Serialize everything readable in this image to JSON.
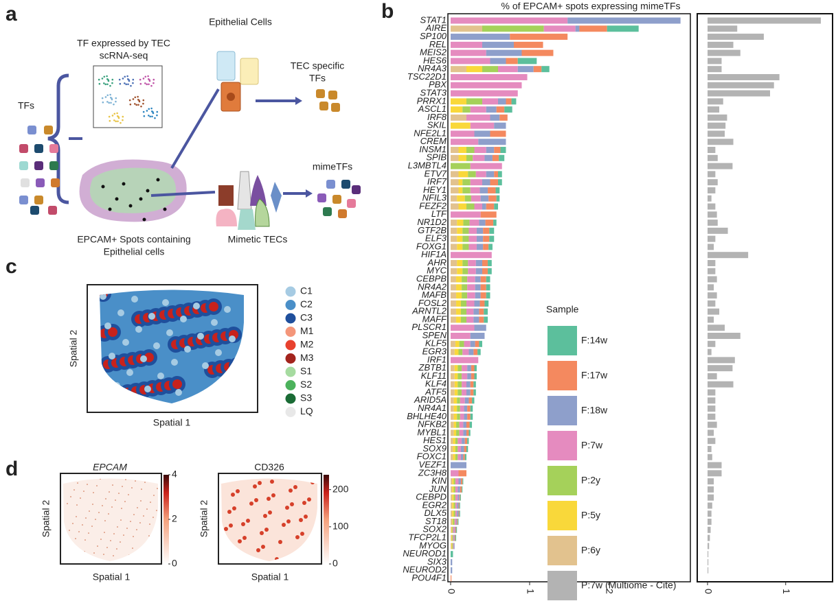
{
  "chart_data": [
    {
      "type": "stacked-bar",
      "orientation": "horizontal",
      "title": "% of EPCAM+ spots expressing mimeTFs",
      "legend_title": "Sample",
      "categories": [
        "STAT1",
        "AIRE",
        "SP100",
        "REL",
        "MEIS2",
        "HES6",
        "NR4A3",
        "TSC22D1",
        "PBX",
        "STAT3",
        "PRRX1",
        "ASCL1",
        "IRF8",
        "SKIL",
        "NFE2L1",
        "CREM",
        "INSM1",
        "SPIB",
        "L3MBTL4",
        "ETV7",
        "IRF7",
        "HEY1",
        "NFIL3",
        "FEZF2",
        "LTF",
        "NR1D2",
        "GTF2B",
        "ELF3",
        "FOXG1",
        "HIF1A",
        "AHR",
        "MYC",
        "CEBPB",
        "NR4A2",
        "MAFB",
        "FOSL2",
        "ARNTL2",
        "MAFF",
        "PLSCR1",
        "SPEN",
        "KLF5",
        "EGR3",
        "IRF1",
        "ZBTB1",
        "KLF11",
        "KLF4",
        "ATF5",
        "ARID5A",
        "NR4A1",
        "BHLHE40",
        "NFKB2",
        "MYBL1",
        "HES1",
        "SOX9",
        "FOXC1",
        "VEZF1",
        "ZC3H8",
        "KIN",
        "JUN",
        "CEBPD",
        "EGR2",
        "DLX5",
        "ST18",
        "SOX2",
        "TFCP2L1",
        "MYOG",
        "NEUROD1",
        "SIX3",
        "NEUROD2",
        "POU4F1"
      ],
      "label_colors": [
        "#555555",
        "#e03c31",
        "#555555",
        "#555555",
        "#555555",
        "#555555",
        "#555555",
        "#555555",
        "#555555",
        "#555555",
        "#555555",
        "#e03c31",
        "#555555",
        "#555555",
        "#555555",
        "#555555",
        "#e03c31",
        "#e03c31",
        "#555555",
        "#555555",
        "#555555",
        "#555555",
        "#555555",
        "#e03c31",
        "#555555",
        "#555555",
        "#555555",
        "#555555",
        "#555555",
        "#555555",
        "#555555",
        "#555555",
        "#555555",
        "#555555",
        "#555555",
        "#555555",
        "#555555",
        "#555555",
        "#555555",
        "#555555",
        "#555555",
        "#29a8d8",
        "#555555",
        "#555555",
        "#555555",
        "#555555",
        "#555555",
        "#555555",
        "#555555",
        "#29a8d8",
        "#29a8d8",
        "#555555",
        "#555555",
        "#e03c31",
        "#555555",
        "#555555",
        "#555555",
        "#555555",
        "#e03c31",
        "#555555",
        "#555555",
        "#29a8d8",
        "#555555",
        "#e03c31",
        "#555555",
        "#e03c31",
        "#e03c31",
        "#555555",
        "#555555",
        "#e03c31"
      ],
      "series": [
        {
          "name": "F:14w",
          "color": "#5cbf9c"
        },
        {
          "name": "F:17w",
          "color": "#f4895f"
        },
        {
          "name": "F:18w",
          "color": "#8e9fcb"
        },
        {
          "name": "P:7w",
          "color": "#e58bbf"
        },
        {
          "name": "P:2y",
          "color": "#a5d15a"
        },
        {
          "name": "P:5y",
          "color": "#f9d83a"
        },
        {
          "name": "P:6y",
          "color": "#e2c28e"
        }
      ],
      "values": [
        [
          0,
          0,
          1.43,
          1.48,
          0,
          0,
          0
        ],
        [
          0.4,
          0.35,
          0.05,
          0.4,
          0.78,
          0,
          0.4
        ],
        [
          0,
          0.73,
          0.75,
          0,
          0,
          0,
          0
        ],
        [
          0,
          0.37,
          0.4,
          0.4,
          0,
          0,
          0
        ],
        [
          0,
          0.4,
          0.45,
          0.45,
          0,
          0,
          0
        ],
        [
          0.24,
          0.15,
          0.2,
          0.5,
          0,
          0,
          0
        ],
        [
          0.1,
          0.1,
          0.2,
          0.25,
          0.2,
          0.2,
          0.2
        ],
        [
          0,
          0,
          0,
          0.97,
          0,
          0,
          0
        ],
        [
          0,
          0,
          0,
          0.9,
          0,
          0,
          0
        ],
        [
          0,
          0,
          0,
          0.85,
          0,
          0,
          0
        ],
        [
          0.06,
          0.07,
          0.1,
          0.2,
          0.2,
          0.2,
          0
        ],
        [
          0.1,
          0.1,
          0.13,
          0.2,
          0.1,
          0.15,
          0
        ],
        [
          0,
          0.1,
          0.12,
          0.3,
          0,
          0,
          0.2
        ],
        [
          0,
          0,
          0.15,
          0.3,
          0,
          0.25,
          0
        ],
        [
          0,
          0.2,
          0.2,
          0.3,
          0,
          0,
          0
        ],
        [
          0,
          0,
          0.35,
          0.35,
          0,
          0,
          0
        ],
        [
          0.07,
          0.08,
          0.1,
          0.15,
          0.1,
          0.1,
          0.1
        ],
        [
          0.07,
          0.08,
          0.1,
          0.15,
          0.08,
          0.1,
          0.1
        ],
        [
          0,
          0,
          0,
          0.4,
          0.25,
          0,
          0
        ],
        [
          0.05,
          0.05,
          0.1,
          0.13,
          0.1,
          0.12,
          0.1
        ],
        [
          0.05,
          0.1,
          0.1,
          0.15,
          0.1,
          0.05,
          0.1
        ],
        [
          0.05,
          0.1,
          0.1,
          0.12,
          0.1,
          0.05,
          0.1
        ],
        [
          0.04,
          0.1,
          0.1,
          0.12,
          0.08,
          0.1,
          0.08
        ],
        [
          0.05,
          0.1,
          0.05,
          0.1,
          0.1,
          0.1,
          0.1
        ],
        [
          0,
          0.2,
          0,
          0.38,
          0,
          0,
          0
        ],
        [
          0.04,
          0.1,
          0.08,
          0.12,
          0.08,
          0.08,
          0.08
        ],
        [
          0.06,
          0.08,
          0.08,
          0.1,
          0.08,
          0.07,
          0.08
        ],
        [
          0.06,
          0.08,
          0.08,
          0.1,
          0.08,
          0.07,
          0.08
        ],
        [
          0.05,
          0.07,
          0.08,
          0.1,
          0.08,
          0.07,
          0.08
        ],
        [
          0,
          0,
          0,
          0.52,
          0,
          0,
          0
        ],
        [
          0.05,
          0.07,
          0.08,
          0.1,
          0.07,
          0.07,
          0.08
        ],
        [
          0.05,
          0.07,
          0.08,
          0.1,
          0.07,
          0.07,
          0.08
        ],
        [
          0.05,
          0.07,
          0.07,
          0.1,
          0.07,
          0.07,
          0.07
        ],
        [
          0.05,
          0.07,
          0.07,
          0.1,
          0.07,
          0.07,
          0.07
        ],
        [
          0.05,
          0.07,
          0.07,
          0.1,
          0.07,
          0.07,
          0.07
        ],
        [
          0.05,
          0.06,
          0.07,
          0.1,
          0.07,
          0.06,
          0.07
        ],
        [
          0.05,
          0.06,
          0.07,
          0.09,
          0.07,
          0.06,
          0.07
        ],
        [
          0.05,
          0.06,
          0.07,
          0.09,
          0.07,
          0.06,
          0.07
        ],
        [
          0,
          0,
          0.15,
          0.3,
          0,
          0,
          0
        ],
        [
          0,
          0,
          0.18,
          0.25,
          0,
          0,
          0
        ],
        [
          0.04,
          0.05,
          0.06,
          0.08,
          0.06,
          0.05,
          0.06
        ],
        [
          0.04,
          0.05,
          0.06,
          0.08,
          0.05,
          0.05,
          0.05
        ],
        [
          0,
          0,
          0,
          0.35,
          0,
          0,
          0
        ],
        [
          0.03,
          0.04,
          0.05,
          0.07,
          0.05,
          0.04,
          0.05
        ],
        [
          0.03,
          0.04,
          0.05,
          0.07,
          0.05,
          0.04,
          0.05
        ],
        [
          0.03,
          0.04,
          0.05,
          0.06,
          0.05,
          0.04,
          0.05
        ],
        [
          0.03,
          0.04,
          0.05,
          0.06,
          0.05,
          0.04,
          0.05
        ],
        [
          0.03,
          0.04,
          0.05,
          0.06,
          0.04,
          0.04,
          0.04
        ],
        [
          0.03,
          0.04,
          0.04,
          0.05,
          0.04,
          0.04,
          0.04
        ],
        [
          0.03,
          0.04,
          0.04,
          0.05,
          0.04,
          0.04,
          0.04
        ],
        [
          0.03,
          0.04,
          0.04,
          0.05,
          0.04,
          0.03,
          0.04
        ],
        [
          0.02,
          0.03,
          0.04,
          0.05,
          0.04,
          0.03,
          0.04
        ],
        [
          0.02,
          0.03,
          0.04,
          0.05,
          0.03,
          0.03,
          0.03
        ],
        [
          0.02,
          0.03,
          0.04,
          0.04,
          0.03,
          0.03,
          0.03
        ],
        [
          0.02,
          0.02,
          0.03,
          0.04,
          0.03,
          0.03,
          0.03
        ],
        [
          0,
          0,
          0.2,
          0,
          0,
          0,
          0
        ],
        [
          0,
          0.1,
          0,
          0.1,
          0,
          0,
          0
        ],
        [
          0.01,
          0.02,
          0.03,
          0.04,
          0.02,
          0.02,
          0.02
        ],
        [
          0.01,
          0.02,
          0.03,
          0.03,
          0.02,
          0.02,
          0.02
        ],
        [
          0.01,
          0.01,
          0.02,
          0.03,
          0.02,
          0.02,
          0.02
        ],
        [
          0.01,
          0.01,
          0.02,
          0.02,
          0.02,
          0.02,
          0.02
        ],
        [
          0.01,
          0.01,
          0.02,
          0.02,
          0.02,
          0.02,
          0.02
        ],
        [
          0.01,
          0.01,
          0.01,
          0.02,
          0.02,
          0.01,
          0.02
        ],
        [
          0.01,
          0.01,
          0.01,
          0.02,
          0.01,
          0.01,
          0.01
        ],
        [
          0.01,
          0.01,
          0.01,
          0.01,
          0.01,
          0.01,
          0.01
        ],
        [
          0,
          0,
          0.01,
          0.01,
          0.01,
          0.01,
          0.01
        ],
        [
          0.03,
          0,
          0,
          0,
          0,
          0,
          0
        ],
        [
          0,
          0,
          0.02,
          0,
          0,
          0,
          0
        ],
        [
          0,
          0,
          0.02,
          0,
          0,
          0,
          0
        ],
        [
          0,
          0.01,
          0,
          0,
          0,
          0,
          0
        ]
      ],
      "xlim": [
        0,
        3
      ],
      "xticks": [
        0,
        1,
        2
      ]
    },
    {
      "type": "bar",
      "orientation": "horizontal",
      "series": [
        {
          "name": "P:7w (Multiome - Cite)",
          "color": "#b3b3b3",
          "values": [
            1.45,
            0.38,
            0.72,
            0.33,
            0.42,
            0.18,
            0.18,
            0.92,
            0.85,
            0.8,
            0.2,
            0.15,
            0.25,
            0.23,
            0.22,
            0.33,
            0.1,
            0.13,
            0.32,
            0.1,
            0.13,
            0.1,
            0.05,
            0.1,
            0.12,
            0.13,
            0.26,
            0.1,
            0.08,
            0.52,
            0.1,
            0.1,
            0.12,
            0.08,
            0.12,
            0.1,
            0.15,
            0.08,
            0.22,
            0.42,
            0.1,
            0.05,
            0.35,
            0.32,
            0.12,
            0.33,
            0.1,
            0.1,
            0.1,
            0.1,
            0.12,
            0.08,
            0.1,
            0.05,
            0.06,
            0.18,
            0.18,
            0.08,
            0.08,
            0.08,
            0.06,
            0.05,
            0.05,
            0.04,
            0.03,
            0.02,
            0.01,
            0.01,
            0.01,
            0
          ]
        }
      ],
      "xlim": [
        0,
        1.6
      ],
      "xticks": [
        0,
        1
      ]
    }
  ],
  "panel_labels": {
    "a": "a",
    "b": "b",
    "c": "c",
    "d": "d"
  },
  "panel_a": {
    "tf": "TFs",
    "scrna": [
      "TF expressed by TEC",
      "scRNA-seq"
    ],
    "epithelial": "Epithelial Cells",
    "tec_specific": [
      "TEC specific",
      "TFs"
    ],
    "mimetfs": "mimeTFs",
    "spots": [
      "EPCAM+ Spots containing",
      "Epithelial cells"
    ],
    "mimetic": "Mimetic TECs"
  },
  "panel_c": {
    "xlabel": "Spatial 1",
    "ylabel": "Spatial 2",
    "legend": [
      {
        "name": "C1",
        "color": "#a6cbe3"
      },
      {
        "name": "C2",
        "color": "#4a8fc8"
      },
      {
        "name": "C3",
        "color": "#1f4f9c"
      },
      {
        "name": "M1",
        "color": "#f4967a"
      },
      {
        "name": "M2",
        "color": "#e8412e"
      },
      {
        "name": "M3",
        "color": "#a3241d"
      },
      {
        "name": "S1",
        "color": "#a6dba0"
      },
      {
        "name": "S2",
        "color": "#4cb25c"
      },
      {
        "name": "S3",
        "color": "#1a6b35"
      },
      {
        "name": "LQ",
        "color": "#e8e8e8"
      }
    ]
  },
  "panel_d": [
    {
      "title": "EPCAM",
      "xlabel": "Spatial 1",
      "ylabel": "Spatial 2",
      "clim": [
        0,
        4
      ],
      "cticks": [
        0,
        2,
        4
      ]
    },
    {
      "title": "CD326",
      "xlabel": "Spatial 1",
      "ylabel": "Spatial 2",
      "clim": [
        0,
        240
      ],
      "cticks": [
        0,
        100,
        200
      ]
    }
  ]
}
